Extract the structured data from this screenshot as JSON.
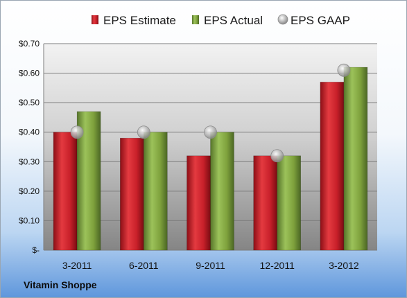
{
  "chart_data": {
    "type": "bar",
    "categories": [
      "3-2011",
      "6-2011",
      "9-2011",
      "12-2011",
      "3-2012"
    ],
    "series": [
      {
        "name": "EPS Estimate",
        "values": [
          0.4,
          0.38,
          0.32,
          0.32,
          0.57
        ],
        "color": "#c8202a",
        "marker": "bar"
      },
      {
        "name": "EPS Actual",
        "values": [
          0.47,
          0.4,
          0.4,
          0.32,
          0.62
        ],
        "color": "#7ea13c",
        "marker": "bar"
      },
      {
        "name": "EPS GAAP",
        "values": [
          0.4,
          0.4,
          0.4,
          0.32,
          0.61
        ],
        "color": "#a9a9a9",
        "marker": "circle"
      }
    ],
    "ylim": [
      0,
      0.7
    ],
    "yticks": [
      0,
      0.1,
      0.2,
      0.3,
      0.4,
      0.5,
      0.6,
      0.7
    ],
    "ytick_labels": [
      "$-",
      "$0.10",
      "$0.20",
      "$0.30",
      "$0.40",
      "$0.50",
      "$0.60",
      "$0.70"
    ],
    "grid": true,
    "legend": "top",
    "annotation": "Vitamin Shoppe"
  }
}
